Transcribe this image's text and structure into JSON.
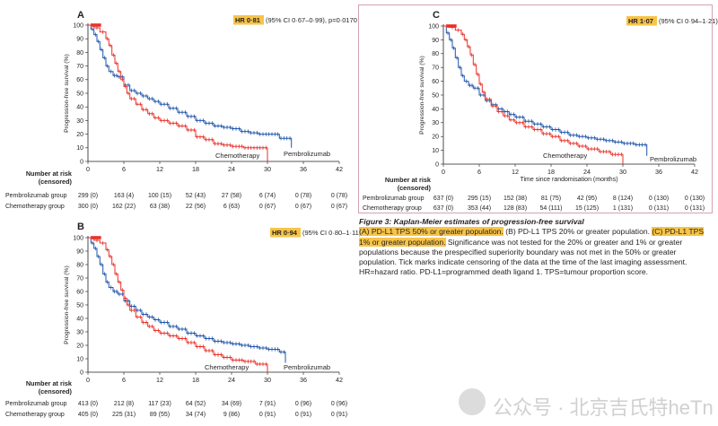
{
  "figure": {
    "caption": {
      "title": "Figure 3: Kaplan-Meier estimates of progression-free survival",
      "a_label": "(A) PD-L1 TPS 50% or greater population.",
      "b_label": "(B) PD-L1 TPS 20% or greater population.",
      "c_label": "(C) PD-L1 TPS 1% or greater population.",
      "body": "Significance was not tested for the 20% or greater and 1% or greater populations because the prespecified superiority boundary was not met in the 50% or greater population. Tick marks indicate censoring of the data at the time of the last imaging assessment. HR=hazard ratio. PD-L1=programmed death ligand 1. TPS=tumour proportion score."
    },
    "colors": {
      "pembrolizumab": "#1f55a8",
      "chemotherapy": "#e8312a",
      "highlight": "#f7c448",
      "frame": "#d5a3b0"
    },
    "watermark": {
      "icon": "wechat-icon",
      "text": "公众号 · 北京吉氏特heTn"
    }
  },
  "chart_data": [
    {
      "panel": "A",
      "type": "line",
      "hr_value": "HR 0·81",
      "hr_ci": "(95% CI 0·67–0·99), p=0·0170",
      "ylabel": "Progression-free survival (%)",
      "xlabel": "",
      "xlim": [
        0,
        42
      ],
      "ylim": [
        0,
        100
      ],
      "xticks": [
        0,
        6,
        12,
        18,
        24,
        30,
        36,
        42
      ],
      "yticks": [
        0,
        10,
        20,
        30,
        40,
        50,
        60,
        70,
        80,
        90,
        100
      ],
      "series": [
        {
          "name": "Pembrolizumab",
          "color": "#1f55a8",
          "x": [
            0,
            0.5,
            1.0,
            1.5,
            2.0,
            2.5,
            3.0,
            3.5,
            4.2,
            5.0,
            6.0,
            7.0,
            8.0,
            9.0,
            10.0,
            11.0,
            12.0,
            13.5,
            15.0,
            16.5,
            18.0,
            19.5,
            21.0,
            22.5,
            24.0,
            25.5,
            27.0,
            28.5,
            30.0,
            32.0,
            34.0,
            34.0
          ],
          "y": [
            100,
            97,
            93,
            88,
            82,
            76,
            70,
            66,
            63,
            62,
            56,
            52,
            50,
            48,
            46,
            44,
            42,
            39,
            36,
            33,
            30,
            28,
            26,
            25,
            24,
            22,
            21,
            20,
            20,
            17,
            15,
            10
          ]
        },
        {
          "name": "Chemotherapy",
          "color": "#e8312a",
          "x": [
            0,
            1.0,
            2.0,
            3.0,
            3.5,
            4.0,
            4.5,
            5.0,
            5.5,
            6.0,
            6.5,
            7.0,
            8.0,
            9.0,
            10.0,
            11.0,
            12.0,
            13.5,
            15.0,
            16.5,
            18.0,
            19.5,
            21.0,
            22.5,
            24.0,
            26.0,
            28.0,
            30.0,
            30.0
          ],
          "y": [
            100,
            98,
            95,
            90,
            85,
            78,
            72,
            66,
            60,
            55,
            50,
            46,
            42,
            38,
            35,
            32,
            30,
            28,
            26,
            23,
            18,
            16,
            13,
            12,
            11,
            10,
            10,
            10,
            0
          ]
        }
      ],
      "risk_title": "Number at risk\n(censored)",
      "risk": [
        {
          "group": "Pembrolizumab group",
          "values": [
            "299 (0)",
            "163 (4)",
            "100 (15)",
            "52 (43)",
            "27 (58)",
            "6 (74)",
            "0 (78)",
            "0 (78)"
          ]
        },
        {
          "group": "Chemotherapy group",
          "values": [
            "300 (0)",
            "162 (22)",
            "63 (38)",
            "22 (56)",
            "6 (63)",
            "0 (67)",
            "0 (67)",
            "0 (67)"
          ]
        }
      ],
      "annotations": [
        "Chemotherapy",
        "Pembrolizumab"
      ]
    },
    {
      "panel": "B",
      "type": "line",
      "hr_value": "HR 0·94",
      "hr_ci": "(95% CI 0·80–1·11)",
      "ylabel": "Progression-free survival (%)",
      "xlabel": "",
      "xlim": [
        0,
        42
      ],
      "ylim": [
        0,
        100
      ],
      "xticks": [
        0,
        6,
        12,
        18,
        24,
        30,
        36,
        42
      ],
      "yticks": [
        0,
        10,
        20,
        30,
        40,
        50,
        60,
        70,
        80,
        90,
        100
      ],
      "series": [
        {
          "name": "Pembrolizumab",
          "color": "#1f55a8",
          "x": [
            0,
            0.5,
            1.0,
            1.5,
            2.0,
            2.5,
            3.0,
            3.5,
            4.2,
            5.0,
            6.0,
            7.0,
            8.0,
            9.0,
            10.0,
            11.0,
            12.0,
            13.5,
            15.0,
            16.5,
            18.0,
            19.5,
            21.0,
            22.5,
            24.0,
            25.5,
            27.0,
            28.5,
            30.0,
            32.0,
            33.0,
            33.0
          ],
          "y": [
            100,
            96,
            92,
            86,
            80,
            73,
            67,
            63,
            60,
            58,
            53,
            49,
            46,
            43,
            41,
            39,
            37,
            34,
            32,
            29,
            27,
            25,
            23,
            22,
            21,
            20,
            19,
            18,
            17,
            15,
            13,
            7
          ]
        },
        {
          "name": "Chemotherapy",
          "color": "#e8312a",
          "x": [
            0,
            1.0,
            2.0,
            3.0,
            3.5,
            4.0,
            4.5,
            5.0,
            5.5,
            6.0,
            6.5,
            7.0,
            8.0,
            9.0,
            10.0,
            11.0,
            12.0,
            13.5,
            15.0,
            16.5,
            18.0,
            19.5,
            21.0,
            22.5,
            24.0,
            26.0,
            28.0,
            30.0,
            30.0
          ],
          "y": [
            100,
            98,
            96,
            91,
            86,
            80,
            73,
            67,
            61,
            55,
            50,
            46,
            41,
            37,
            34,
            31,
            29,
            27,
            25,
            22,
            19,
            16,
            13,
            11,
            9,
            8,
            6,
            5,
            0
          ]
        }
      ],
      "risk_title": "Number at risk\n(censored)",
      "risk": [
        {
          "group": "Pembrolizumab group",
          "values": [
            "413 (0)",
            "212 (8)",
            "117 (23)",
            "64 (52)",
            "34 (69)",
            "7 (91)",
            "0 (96)",
            "0 (96)"
          ]
        },
        {
          "group": "Chemotherapy group",
          "values": [
            "405 (0)",
            "225 (31)",
            "89 (55)",
            "34 (74)",
            "9 (86)",
            "0 (91)",
            "0 (91)",
            "0 (91)"
          ]
        }
      ],
      "annotations": [
        "Chemotherapy",
        "Pembrolizumab"
      ]
    },
    {
      "panel": "C",
      "type": "line",
      "hr_value": "HR 1·07",
      "hr_ci": "(95% CI 0·94–1·21)",
      "ylabel": "Progression-free survival (%)",
      "xlabel": "Time since randomisation (months)",
      "xlim": [
        0,
        42
      ],
      "ylim": [
        0,
        100
      ],
      "xticks": [
        0,
        6,
        12,
        18,
        24,
        30,
        36,
        42
      ],
      "yticks": [
        0,
        10,
        20,
        30,
        40,
        50,
        60,
        70,
        80,
        90,
        100
      ],
      "series": [
        {
          "name": "Pembrolizumab",
          "color": "#1f55a8",
          "x": [
            0,
            0.5,
            1.0,
            1.5,
            2.0,
            2.5,
            3.0,
            3.5,
            4.2,
            5.0,
            6.0,
            7.0,
            8.0,
            9.0,
            10.0,
            11.0,
            12.0,
            13.5,
            15.0,
            16.5,
            18.0,
            19.5,
            21.0,
            22.5,
            24.0,
            25.5,
            27.0,
            28.5,
            30.0,
            32.0,
            34.0,
            34.0
          ],
          "y": [
            100,
            95,
            90,
            84,
            77,
            70,
            64,
            60,
            57,
            55,
            50,
            46,
            43,
            40,
            38,
            36,
            34,
            31,
            29,
            27,
            25,
            23,
            21,
            20,
            19,
            18,
            17,
            16,
            15,
            14,
            13,
            6
          ]
        },
        {
          "name": "Chemotherapy",
          "color": "#e8312a",
          "x": [
            0,
            1.0,
            2.0,
            3.0,
            3.5,
            4.0,
            4.5,
            5.0,
            5.5,
            6.0,
            6.5,
            7.0,
            8.0,
            9.0,
            10.0,
            11.0,
            12.0,
            13.5,
            15.0,
            16.5,
            18.0,
            19.5,
            21.0,
            22.5,
            24.0,
            26.0,
            28.0,
            30.0,
            30.0
          ],
          "y": [
            100,
            99,
            97,
            94,
            90,
            85,
            79,
            72,
            65,
            58,
            52,
            47,
            42,
            38,
            35,
            32,
            30,
            27,
            25,
            22,
            20,
            17,
            15,
            13,
            11,
            9,
            7,
            5,
            0
          ]
        }
      ],
      "risk_title": "Number at risk\n(censored)",
      "risk": [
        {
          "group": "Pembrolizumab group",
          "values": [
            "637 (0)",
            "295 (15)",
            "152 (38)",
            "81 (75)",
            "42 (95)",
            "8 (124)",
            "0 (130)",
            "0 (130)"
          ]
        },
        {
          "group": "Chemotherapy group",
          "values": [
            "637 (0)",
            "353 (44)",
            "128 (83)",
            "54 (111)",
            "15 (125)",
            "1 (131)",
            "0 (131)",
            "0 (131)"
          ]
        }
      ],
      "annotations": [
        "Chemotherapy",
        "Pembrolizumab"
      ]
    }
  ]
}
